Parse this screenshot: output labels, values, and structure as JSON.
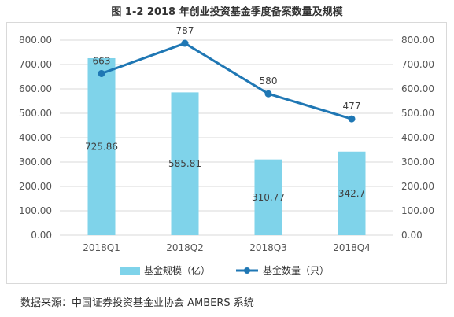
{
  "title": "图 1-2 2018 年创业投资基金季度备案数量及规模",
  "source": "数据来源：中国证券投资基金业协会 AMBERS 系统",
  "colors": {
    "bar": "#7fd3ea",
    "line": "#1f77b4",
    "grid": "#d9d9d9",
    "frame": "#d9d9d9"
  },
  "chart_data": {
    "type": "bar",
    "categories": [
      "2018Q1",
      "2018Q2",
      "2018Q3",
      "2018Q4"
    ],
    "series": [
      {
        "name": "基金规模（亿）",
        "type": "bar",
        "axis": "left",
        "values": [
          725.86,
          585.81,
          310.77,
          342.7
        ],
        "labels": [
          "725.86",
          "585.81",
          "310.77",
          "342.7"
        ]
      },
      {
        "name": "基金数量（只）",
        "type": "line",
        "axis": "right",
        "values": [
          663,
          787,
          580,
          477
        ],
        "labels": [
          "663",
          "787",
          "580",
          "477"
        ]
      }
    ],
    "y_left": {
      "ylim": [
        0,
        800
      ],
      "ticks": [
        "0.00",
        "100.00",
        "200.00",
        "300.00",
        "400.00",
        "500.00",
        "600.00",
        "700.00",
        "800.00"
      ]
    },
    "y_right": {
      "ylim": [
        0,
        800
      ],
      "ticks": [
        "0.00",
        "100.00",
        "200.00",
        "300.00",
        "400.00",
        "500.00",
        "600.00",
        "700.00",
        "800.00"
      ]
    },
    "grid": true,
    "legend_position": "bottom"
  }
}
